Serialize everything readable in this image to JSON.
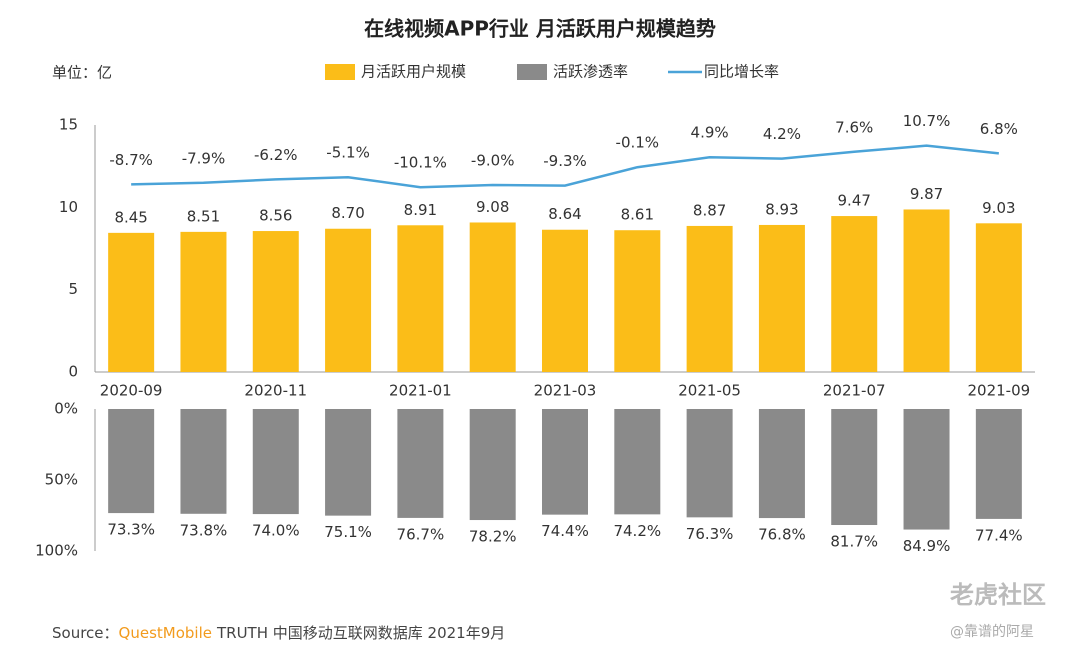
{
  "title": "在线视频APP行业 月活跃用户规模趋势",
  "unit": "单位：亿",
  "source": {
    "prefix": "Source：",
    "brand": "QuestMobile",
    "text": "TRUTH 中国移动互联网数据库 2021年9月"
  },
  "watermark": {
    "site": "老虎社区",
    "author": "@靠谱的阿星"
  },
  "chart_data": [
    {
      "type": "bar",
      "categories": [
        "2020-09",
        null,
        "2020-11",
        null,
        "2021-01",
        null,
        "2021-03",
        null,
        "2021-05",
        null,
        "2021-07",
        null,
        "2021-09"
      ],
      "ylim": [
        0,
        15
      ],
      "yticks": [
        0,
        5,
        10,
        15
      ],
      "series": [
        {
          "name": "月活跃用户规模",
          "type": "bar",
          "color": "#fbbd18",
          "values": [
            8.45,
            8.51,
            8.56,
            8.7,
            8.91,
            9.08,
            8.64,
            8.61,
            8.87,
            8.93,
            9.47,
            9.87,
            9.03
          ],
          "value_labels": [
            "8.45",
            "8.51",
            "8.56",
            "8.70",
            "8.91",
            "9.08",
            "8.64",
            "8.61",
            "8.87",
            "8.93",
            "9.47",
            "9.87",
            "9.03"
          ]
        },
        {
          "name": "同比增长率",
          "type": "line",
          "color": "#4aa3d8",
          "values": [
            -8.7,
            -7.9,
            -6.2,
            -5.1,
            -10.1,
            -9.0,
            -9.3,
            -0.1,
            4.9,
            4.2,
            7.6,
            10.7,
            6.8
          ],
          "value_labels": [
            "-8.7%",
            "-7.9%",
            "-6.2%",
            "-5.1%",
            "-10.1%",
            "-9.0%",
            "-9.3%",
            "-0.1%",
            "4.9%",
            "4.2%",
            "7.6%",
            "10.7%",
            "6.8%"
          ]
        }
      ]
    },
    {
      "type": "bar",
      "inverted": true,
      "ylim": [
        0,
        100
      ],
      "yticks": [
        {
          "value": 0,
          "label": "0%"
        },
        {
          "value": 50,
          "label": "50%"
        },
        {
          "value": 100,
          "label": "100%"
        }
      ],
      "series": [
        {
          "name": "活跃渗透率",
          "type": "bar",
          "color": "#8a8a8a",
          "values": [
            73.3,
            73.8,
            74.0,
            75.1,
            76.7,
            78.2,
            74.4,
            74.2,
            76.3,
            76.8,
            81.7,
            84.9,
            77.4
          ],
          "value_labels": [
            "73.3%",
            "73.8%",
            "74.0%",
            "75.1%",
            "76.7%",
            "78.2%",
            "74.4%",
            "74.2%",
            "76.3%",
            "76.8%",
            "81.7%",
            "84.9%",
            "77.4%"
          ]
        }
      ]
    }
  ]
}
